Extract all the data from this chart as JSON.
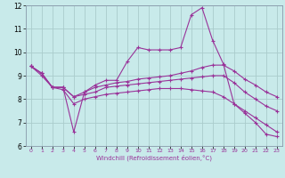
{
  "title": "",
  "xlabel": "Windchill (Refroidissement éolien,°C)",
  "ylabel": "",
  "bg_color": "#c8eaea",
  "line_color": "#993399",
  "grid_color": "#aacccc",
  "spine_color": "#8899aa",
  "xlim": [
    -0.5,
    23.5
  ],
  "ylim": [
    6,
    12
  ],
  "yticks": [
    6,
    7,
    8,
    9,
    10,
    11,
    12
  ],
  "xticks": [
    0,
    1,
    2,
    3,
    4,
    5,
    6,
    7,
    8,
    9,
    10,
    11,
    12,
    13,
    14,
    15,
    16,
    17,
    18,
    19,
    20,
    21,
    22,
    23
  ],
  "lines": [
    {
      "x": [
        0,
        1,
        2,
        3,
        4,
        5,
        6,
        7,
        8,
        9,
        10,
        11,
        12,
        13,
        14,
        15,
        16,
        17,
        18,
        19,
        20,
        21,
        22,
        23
      ],
      "y": [
        9.4,
        9.1,
        8.5,
        8.5,
        6.6,
        8.3,
        8.6,
        8.8,
        8.8,
        9.6,
        10.2,
        10.1,
        10.1,
        10.1,
        10.2,
        11.6,
        11.9,
        10.5,
        9.5,
        7.8,
        7.4,
        7.0,
        6.5,
        6.4
      ]
    },
    {
      "x": [
        0,
        1,
        2,
        3,
        4,
        5,
        6,
        7,
        8,
        9,
        10,
        11,
        12,
        13,
        14,
        15,
        16,
        17,
        18,
        19,
        20,
        21,
        22,
        23
      ],
      "y": [
        9.4,
        9.1,
        8.5,
        8.5,
        8.1,
        8.3,
        8.5,
        8.6,
        8.7,
        8.75,
        8.85,
        8.9,
        8.95,
        9.0,
        9.1,
        9.2,
        9.35,
        9.45,
        9.45,
        9.2,
        8.85,
        8.6,
        8.3,
        8.1
      ]
    },
    {
      "x": [
        0,
        1,
        2,
        3,
        4,
        5,
        6,
        7,
        8,
        9,
        10,
        11,
        12,
        13,
        14,
        15,
        16,
        17,
        18,
        19,
        20,
        21,
        22,
        23
      ],
      "y": [
        9.4,
        9.1,
        8.5,
        8.5,
        8.1,
        8.2,
        8.3,
        8.5,
        8.55,
        8.6,
        8.65,
        8.7,
        8.75,
        8.8,
        8.85,
        8.9,
        8.95,
        9.0,
        9.0,
        8.7,
        8.3,
        8.0,
        7.7,
        7.5
      ]
    },
    {
      "x": [
        0,
        1,
        2,
        3,
        4,
        5,
        6,
        7,
        8,
        9,
        10,
        11,
        12,
        13,
        14,
        15,
        16,
        17,
        18,
        19,
        20,
        21,
        22,
        23
      ],
      "y": [
        9.4,
        9.0,
        8.5,
        8.4,
        7.8,
        8.0,
        8.1,
        8.2,
        8.25,
        8.3,
        8.35,
        8.4,
        8.45,
        8.45,
        8.45,
        8.4,
        8.35,
        8.3,
        8.1,
        7.8,
        7.5,
        7.2,
        6.9,
        6.6
      ]
    }
  ]
}
